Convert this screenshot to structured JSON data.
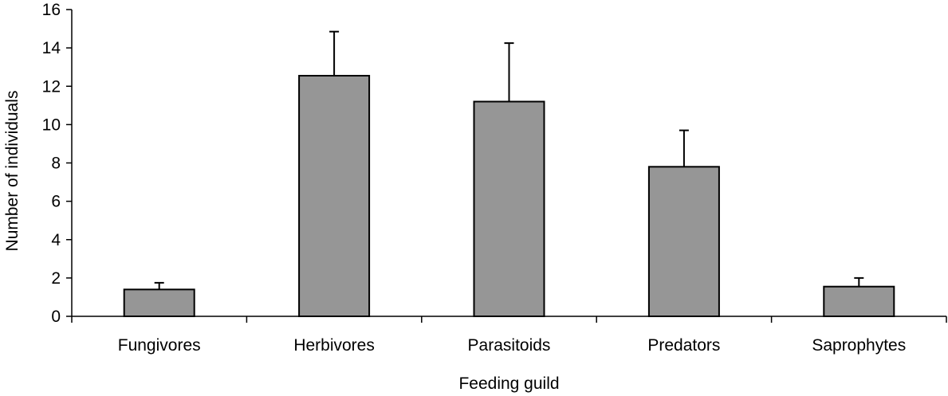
{
  "chart_data": {
    "type": "bar",
    "title": "",
    "xlabel": "Feeding guild",
    "ylabel": "Number of individuals",
    "categories": [
      "Fungivores",
      "Herbivores",
      "Parasitoids",
      "Predators",
      "Saprophytes"
    ],
    "values": [
      1.4,
      12.55,
      11.2,
      7.8,
      1.55
    ],
    "error_upper": [
      0.35,
      2.3,
      3.05,
      1.9,
      0.45
    ],
    "ylim": [
      0,
      16
    ],
    "yticks": [
      "0",
      "2",
      "4",
      "6",
      "8",
      "10",
      "12",
      "14",
      "16"
    ],
    "grid": false,
    "legend": "none",
    "bar_color": "#969696",
    "edge_color": "#000000"
  }
}
